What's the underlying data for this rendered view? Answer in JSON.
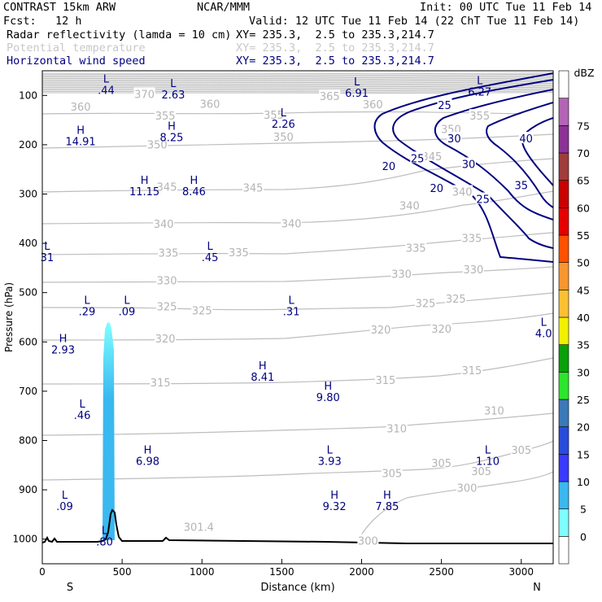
{
  "header": {
    "model": "CONTRAST 15km ARW",
    "org": "NCAR/MMM",
    "init": "Init: 00 UTC Tue 11 Feb 14",
    "fcst_label": "Fcst:",
    "fcst_value": "12 h",
    "valid": "Valid: 12 UTC Tue 11 Feb 14 (22 ChT Tue 11 Feb 14)"
  },
  "fields": [
    {
      "name": "Radar reflectivity (lamda = 10 cm)",
      "coords": "XY= 235.3,  2.5 to 235.3,214.7",
      "color": "#000000"
    },
    {
      "name": "Potential temperature",
      "coords": "XY= 235.3,  2.5 to 235.3,214.7",
      "color": "#c8c8c8"
    },
    {
      "name": "Horizontal wind speed",
      "coords": "XY= 235.3,  2.5 to 235.3,214.7",
      "color": "#000080"
    }
  ],
  "chart_data": {
    "type": "cross-section",
    "xlabel": "Distance (km)",
    "ylabel": "Pressure (hPa)",
    "xlim": [
      0,
      3200
    ],
    "ylim": [
      1050,
      50
    ],
    "x_ticks": [
      0,
      500,
      1000,
      1500,
      2000,
      2500,
      3000
    ],
    "y_ticks": [
      100,
      200,
      300,
      400,
      500,
      600,
      700,
      800,
      900,
      1000
    ],
    "x_end_labels": {
      "left": "S",
      "right": "N"
    },
    "colorbar": {
      "unit": "dBZ",
      "levels": [
        0,
        5,
        10,
        15,
        20,
        25,
        30,
        35,
        40,
        45,
        50,
        55,
        60,
        65,
        70,
        75
      ],
      "colors": [
        "#ffffff",
        "#7effff",
        "#3ab8f0",
        "#3a3aff",
        "#2a4cdc",
        "#3a7ab8",
        "#2ce62c",
        "#0aa00a",
        "#f0f000",
        "#fac032",
        "#f89630",
        "#ff5000",
        "#e60000",
        "#c80000",
        "#a03c3c",
        "#8c3296",
        "#b464b4",
        "#ffffff"
      ]
    },
    "theta_labels": [
      {
        "text": "370",
        "x": 640,
        "p": 97
      },
      {
        "text": "365",
        "x": 1800,
        "p": 101
      },
      {
        "text": "360",
        "x": 240,
        "p": 123
      },
      {
        "text": "360",
        "x": 1050,
        "p": 117
      },
      {
        "text": "360",
        "x": 2070,
        "p": 118
      },
      {
        "text": "355",
        "x": 770,
        "p": 141
      },
      {
        "text": "355",
        "x": 1450,
        "p": 139
      },
      {
        "text": "355",
        "x": 2740,
        "p": 141
      },
      {
        "text": "350",
        "x": 720,
        "p": 199
      },
      {
        "text": "350",
        "x": 1510,
        "p": 184
      },
      {
        "text": "350",
        "x": 2560,
        "p": 168
      },
      {
        "text": "345",
        "x": 780,
        "p": 285
      },
      {
        "text": "345",
        "x": 1320,
        "p": 287
      },
      {
        "text": "345",
        "x": 2440,
        "p": 223
      },
      {
        "text": "340",
        "x": 760,
        "p": 360
      },
      {
        "text": "340",
        "x": 1560,
        "p": 359
      },
      {
        "text": "340",
        "x": 2300,
        "p": 323
      },
      {
        "text": "340",
        "x": 2630,
        "p": 295
      },
      {
        "text": "335",
        "x": 790,
        "p": 419
      },
      {
        "text": "335",
        "x": 1230,
        "p": 418
      },
      {
        "text": "335",
        "x": 2340,
        "p": 409
      },
      {
        "text": "335",
        "x": 2690,
        "p": 389
      },
      {
        "text": "330",
        "x": 780,
        "p": 475
      },
      {
        "text": "330",
        "x": 2250,
        "p": 462
      },
      {
        "text": "330",
        "x": 2700,
        "p": 453
      },
      {
        "text": "325",
        "x": 780,
        "p": 528
      },
      {
        "text": "325",
        "x": 1000,
        "p": 536
      },
      {
        "text": "325",
        "x": 2400,
        "p": 521
      },
      {
        "text": "325",
        "x": 2590,
        "p": 512
      },
      {
        "text": "320",
        "x": 770,
        "p": 593
      },
      {
        "text": "320",
        "x": 2120,
        "p": 575
      },
      {
        "text": "320",
        "x": 2500,
        "p": 573
      },
      {
        "text": "315",
        "x": 740,
        "p": 682
      },
      {
        "text": "315",
        "x": 2150,
        "p": 677
      },
      {
        "text": "315",
        "x": 2690,
        "p": 657
      },
      {
        "text": "310",
        "x": 2220,
        "p": 775
      },
      {
        "text": "310",
        "x": 2830,
        "p": 739
      },
      {
        "text": "305",
        "x": 2500,
        "p": 845
      },
      {
        "text": "305",
        "x": 2190,
        "p": 866
      },
      {
        "text": "305",
        "x": 2750,
        "p": 862
      },
      {
        "text": "305",
        "x": 3000,
        "p": 819
      },
      {
        "text": "300",
        "x": 2660,
        "p": 896
      },
      {
        "text": "300",
        "x": 2040,
        "p": 1003
      },
      {
        "text": "301.4",
        "x": 980,
        "p": 975
      }
    ],
    "wind_labels": [
      {
        "text": "20",
        "x": 2170,
        "p": 243
      },
      {
        "text": "20",
        "x": 2470,
        "p": 288
      },
      {
        "text": "25",
        "x": 2520,
        "p": 119
      },
      {
        "text": "25",
        "x": 2350,
        "p": 227
      },
      {
        "text": "25",
        "x": 2760,
        "p": 310
      },
      {
        "text": "30",
        "x": 2580,
        "p": 187
      },
      {
        "text": "30",
        "x": 2670,
        "p": 239
      },
      {
        "text": "35",
        "x": 3000,
        "p": 282
      },
      {
        "text": "40",
        "x": 3030,
        "p": 187
      }
    ],
    "hl_markers": [
      {
        "letter": "L",
        "value": ".44",
        "x": 400,
        "p": 74
      },
      {
        "letter": "L",
        "value": "2.63",
        "x": 820,
        "p": 83
      },
      {
        "letter": "L",
        "value": "6.91",
        "x": 1970,
        "p": 80
      },
      {
        "letter": "L",
        "value": "6.27",
        "x": 2740,
        "p": 77
      },
      {
        "letter": "L",
        "value": "2.26",
        "x": 1510,
        "p": 142
      },
      {
        "letter": "H",
        "value": "14.91",
        "x": 240,
        "p": 178
      },
      {
        "letter": "H",
        "value": "8.25",
        "x": 810,
        "p": 170
      },
      {
        "letter": "H",
        "value": "11.15",
        "x": 640,
        "p": 279
      },
      {
        "letter": "H",
        "value": "8.46",
        "x": 950,
        "p": 279
      },
      {
        "letter": "L",
        "value": "31",
        "x": 30,
        "p": 413
      },
      {
        "letter": "L",
        "value": ".45",
        "x": 1050,
        "p": 413
      },
      {
        "letter": "L",
        "value": ".29",
        "x": 280,
        "p": 523
      },
      {
        "letter": "L",
        "value": ".09",
        "x": 530,
        "p": 523
      },
      {
        "letter": "L",
        "value": ".31",
        "x": 1560,
        "p": 523
      },
      {
        "letter": "L",
        "value": "4.0",
        "x": 3140,
        "p": 567
      },
      {
        "letter": "H",
        "value": "2.93",
        "x": 130,
        "p": 600
      },
      {
        "letter": "H",
        "value": "8.41",
        "x": 1380,
        "p": 656
      },
      {
        "letter": "H",
        "value": "9.80",
        "x": 1790,
        "p": 697
      },
      {
        "letter": "L",
        "value": ".46",
        "x": 250,
        "p": 733
      },
      {
        "letter": "H",
        "value": "6.98",
        "x": 660,
        "p": 826
      },
      {
        "letter": "L",
        "value": "3.93",
        "x": 1800,
        "p": 826
      },
      {
        "letter": "L",
        "value": "1.10",
        "x": 2790,
        "p": 826
      },
      {
        "letter": "L",
        "value": ".09",
        "x": 140,
        "p": 918
      },
      {
        "letter": "H",
        "value": "9.32",
        "x": 1830,
        "p": 918
      },
      {
        "letter": "H",
        "value": "7.85",
        "x": 2160,
        "p": 918
      },
      {
        "letter": "L",
        "value": ".80",
        "x": 390,
        "p": 990
      }
    ]
  }
}
